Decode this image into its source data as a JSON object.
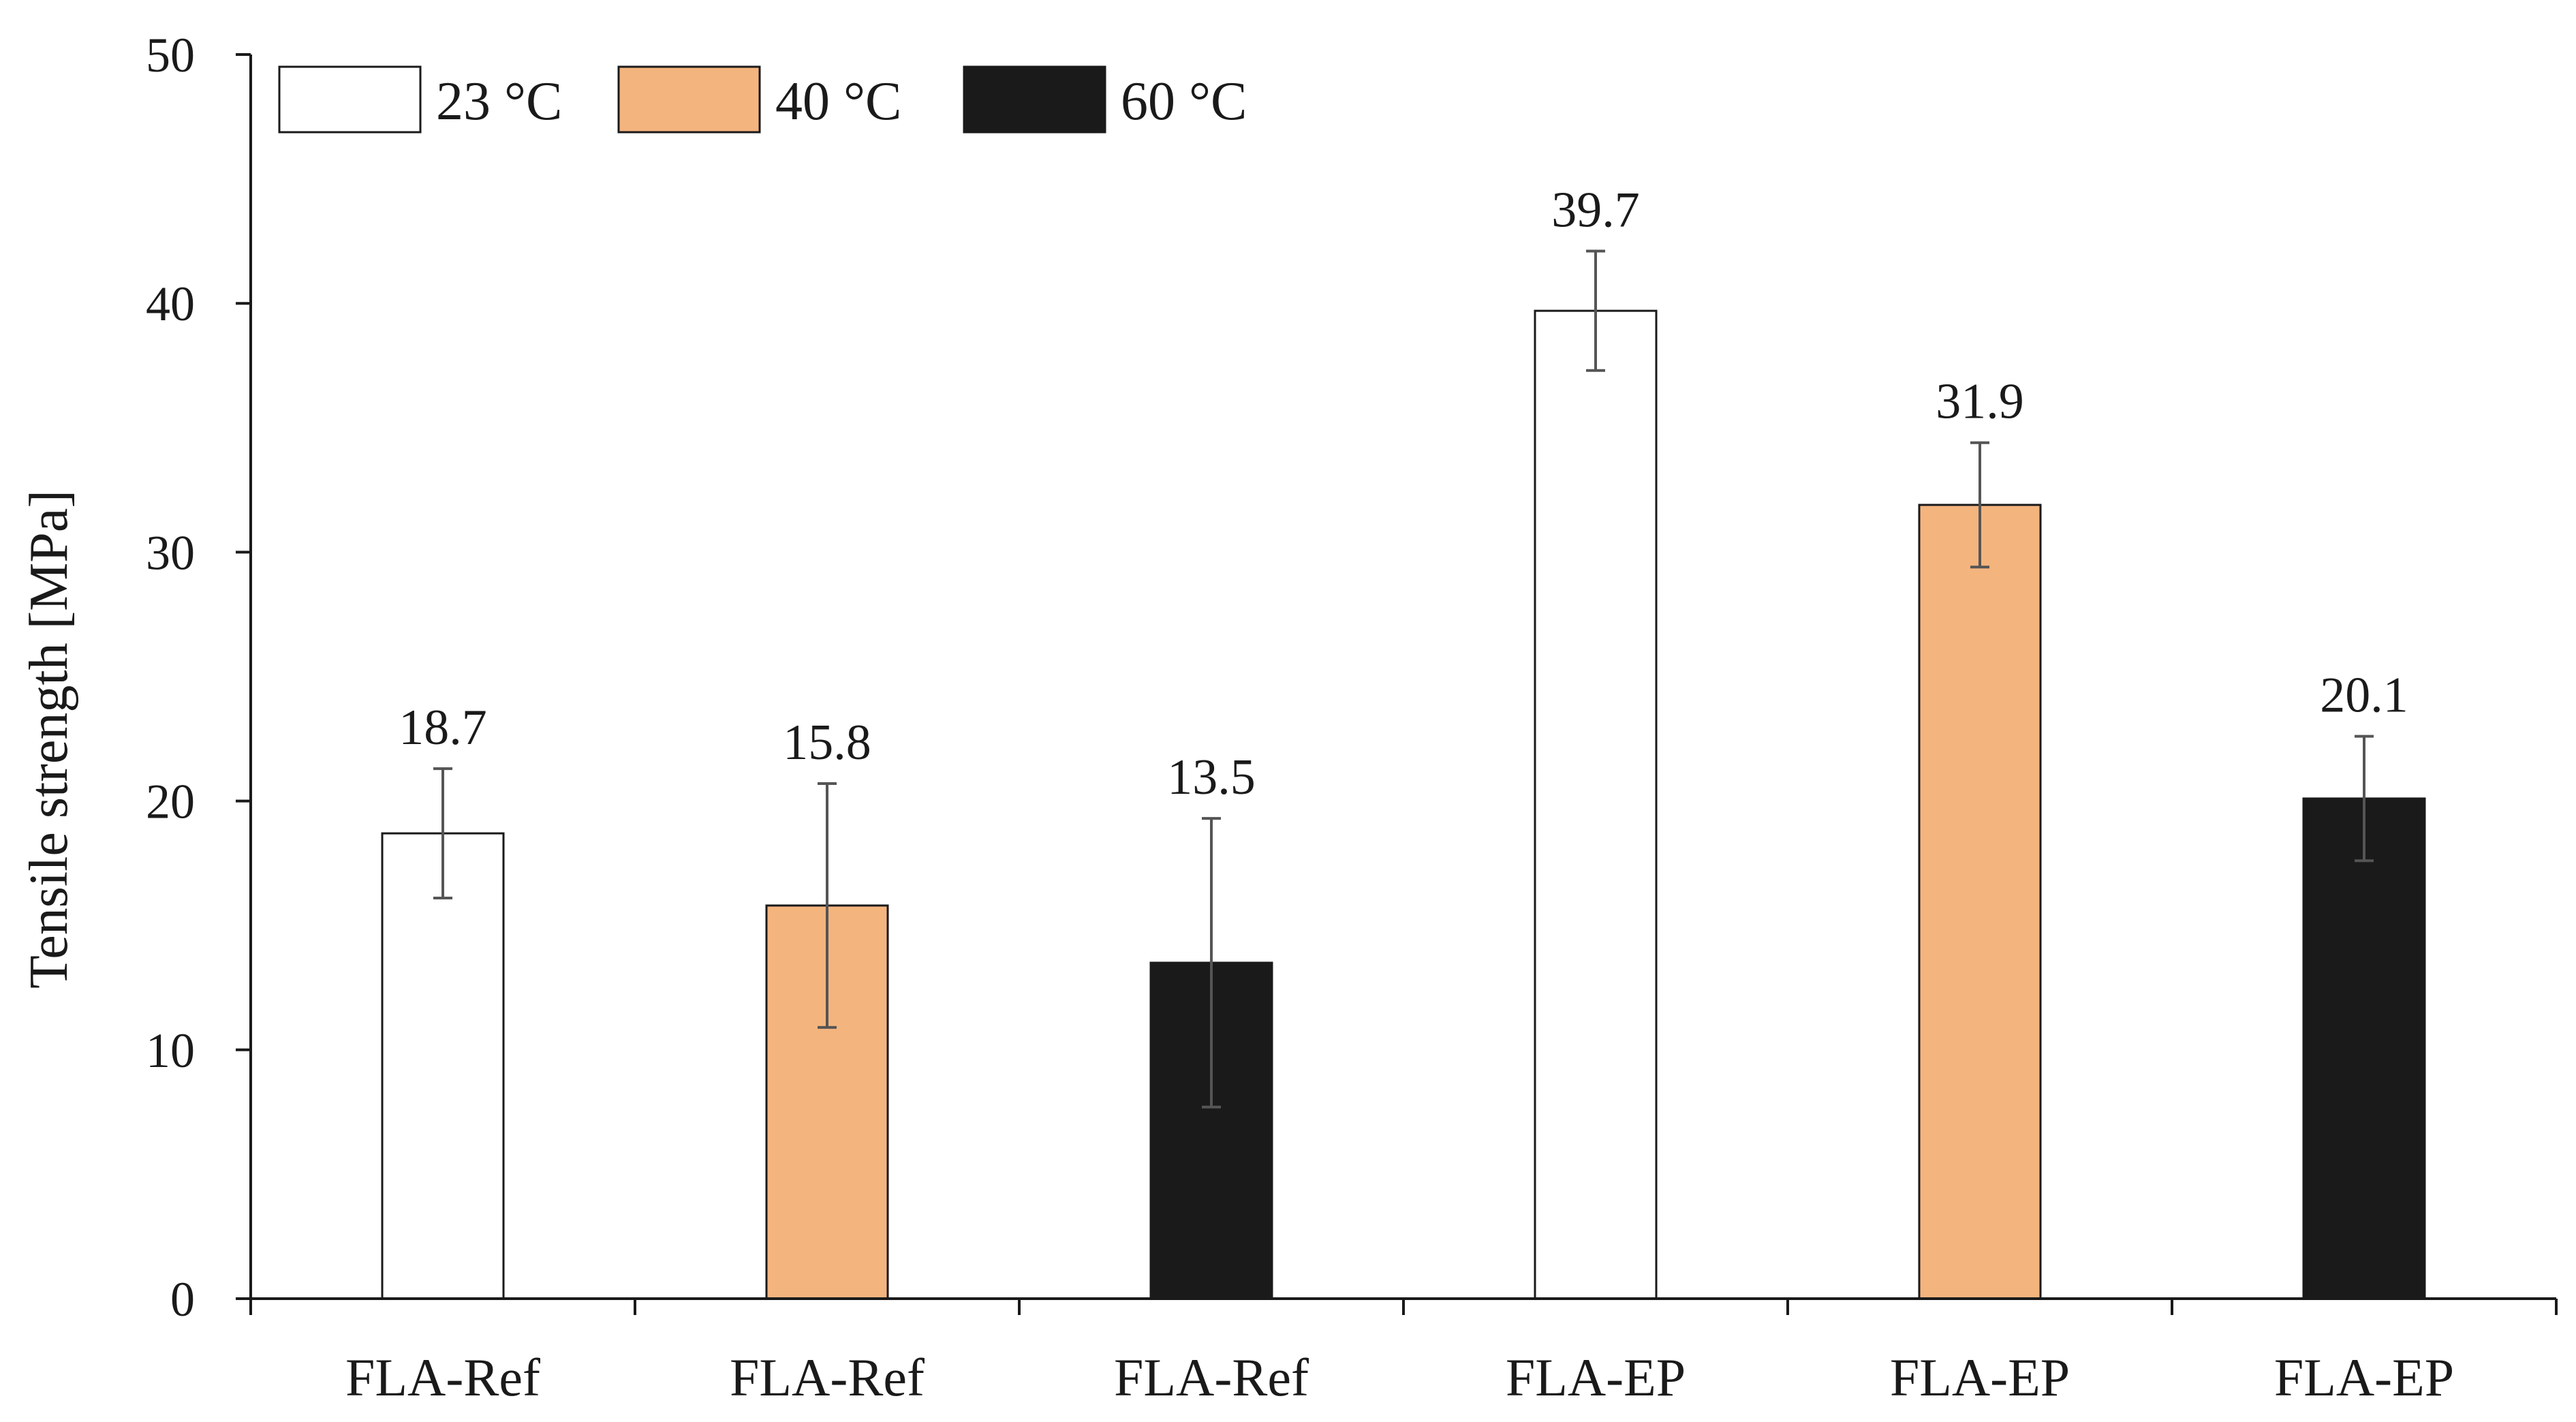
{
  "chart_data": {
    "type": "bar",
    "title": "",
    "xlabel": "",
    "ylabel": "Tensile strength [MPa]",
    "ylim": [
      0,
      50
    ],
    "yticks": [
      0,
      10,
      20,
      30,
      40,
      50
    ],
    "grid": false,
    "legend_position": "top-left",
    "legend": [
      {
        "name": "23 °C",
        "color": "#ffffff"
      },
      {
        "name": "40 °C",
        "color": "#f4b47e"
      },
      {
        "name": "60 °C",
        "color": "#1a1a1a"
      }
    ],
    "categories": [
      "FLA-Ref",
      "FLA-Ref",
      "FLA-Ref",
      "FLA-EP",
      "FLA-EP",
      "FLA-EP"
    ],
    "bars": [
      {
        "category": "FLA-Ref",
        "series": "23 °C",
        "value": 18.7,
        "error": 2.6,
        "label": "18.7",
        "color": "#ffffff"
      },
      {
        "category": "FLA-Ref",
        "series": "40 °C",
        "value": 15.8,
        "error": 4.9,
        "label": "15.8",
        "color": "#f4b47e"
      },
      {
        "category": "FLA-Ref",
        "series": "60 °C",
        "value": 13.5,
        "error": 5.8,
        "label": "13.5",
        "color": "#1a1a1a"
      },
      {
        "category": "FLA-EP",
        "series": "23 °C",
        "value": 39.7,
        "error": 2.4,
        "label": "39.7",
        "color": "#ffffff"
      },
      {
        "category": "FLA-EP",
        "series": "40 °C",
        "value": 31.9,
        "error": 2.5,
        "label": "31.9",
        "color": "#f4b47e"
      },
      {
        "category": "FLA-EP",
        "series": "60 °C",
        "value": 20.1,
        "error": 2.5,
        "label": "20.1",
        "color": "#1a1a1a"
      }
    ]
  }
}
